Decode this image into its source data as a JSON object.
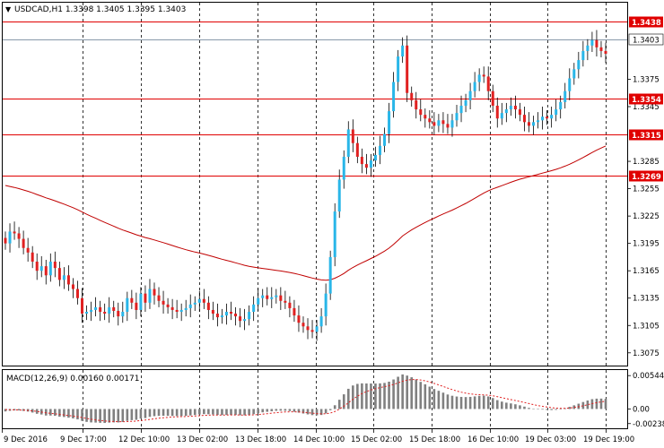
{
  "window": {
    "symbol_header": "USDCAD,H1  1.3398 1.3405 1.3395 1.3403"
  },
  "price_axis": {
    "current_price": "1.3403",
    "ticks": [
      "1.3375",
      "1.3345",
      "1.3285",
      "1.3255",
      "1.3225",
      "1.3195",
      "1.3165",
      "1.3135",
      "1.3105",
      "1.3075"
    ]
  },
  "levels": [
    {
      "value": "1.3438",
      "color": "#e00000"
    },
    {
      "value": "1.3354",
      "color": "#e00000"
    },
    {
      "value": "1.3315",
      "color": "#e00000"
    },
    {
      "value": "1.3269",
      "color": "#e00000"
    }
  ],
  "macd": {
    "label": "MACD(12,26,9) 0.00160 0.00171",
    "ticks": [
      "0.00544",
      "0.00",
      "-0.00238"
    ]
  },
  "time_axis": {
    "labels": [
      "9 Dec 2016",
      "9 Dec 17:00",
      "12 Dec 10:00",
      "13 Dec 02:00",
      "13 Dec 18:00",
      "14 Dec 10:00",
      "15 Dec 02:00",
      "15 Dec 18:00",
      "16 Dec 10:00",
      "19 Dec 03:00",
      "19 Dec 19:00"
    ]
  },
  "colors": {
    "bull": "#29b6e8",
    "bear": "#e02020",
    "ma": "#c00000",
    "macd_bar": "#808080",
    "signal": "#e02020"
  },
  "chart_data": {
    "type": "candlestick",
    "symbol": "USDCAD",
    "timeframe": "H1",
    "ylim": [
      1.3063,
      1.3458
    ],
    "macd_ylim": [
      -0.003,
      0.0062
    ],
    "closes": [
      1.3195,
      1.3208,
      1.3206,
      1.32,
      1.319,
      1.3185,
      1.3175,
      1.3165,
      1.317,
      1.316,
      1.3175,
      1.3168,
      1.3155,
      1.316,
      1.315,
      1.3145,
      1.3135,
      1.3118,
      1.312,
      1.3122,
      1.3125,
      1.312,
      1.3118,
      1.3125,
      1.3121,
      1.3115,
      1.312,
      1.3135,
      1.313,
      1.3122,
      1.314,
      1.313,
      1.3145,
      1.3138,
      1.3132,
      1.3128,
      1.3125,
      1.3122,
      1.312,
      1.3122,
      1.3124,
      1.3128,
      1.313,
      1.3134,
      1.313,
      1.3122,
      1.3118,
      1.3114,
      1.3116,
      1.312,
      1.3118,
      1.3115,
      1.311,
      1.3112,
      1.312,
      1.3128,
      1.3135,
      1.3138,
      1.3134,
      1.3136,
      1.3138,
      1.3132,
      1.313,
      1.3124,
      1.3116,
      1.3108,
      1.3104,
      1.31,
      1.3098,
      1.3104,
      1.3115,
      1.314,
      1.318,
      1.323,
      1.3265,
      1.329,
      1.332,
      1.3305,
      1.329,
      1.3282,
      1.3278,
      1.3286,
      1.3292,
      1.3302,
      1.3315,
      1.334,
      1.3372,
      1.34,
      1.3412,
      1.336,
      1.3352,
      1.3342,
      1.3336,
      1.3332,
      1.3328,
      1.3324,
      1.333,
      1.3326,
      1.3322,
      1.333,
      1.3338,
      1.3346,
      1.3352,
      1.3362,
      1.3372,
      1.338,
      1.3378,
      1.3362,
      1.3346,
      1.3332,
      1.3338,
      1.3342,
      1.3346,
      1.3342,
      1.3336,
      1.3328,
      1.3324,
      1.3328,
      1.333,
      1.3334,
      1.3332,
      1.3336,
      1.3342,
      1.335,
      1.3362,
      1.3376,
      1.3386,
      1.3396,
      1.3406,
      1.3412,
      1.3418,
      1.341,
      1.3406,
      1.3403
    ]
  }
}
